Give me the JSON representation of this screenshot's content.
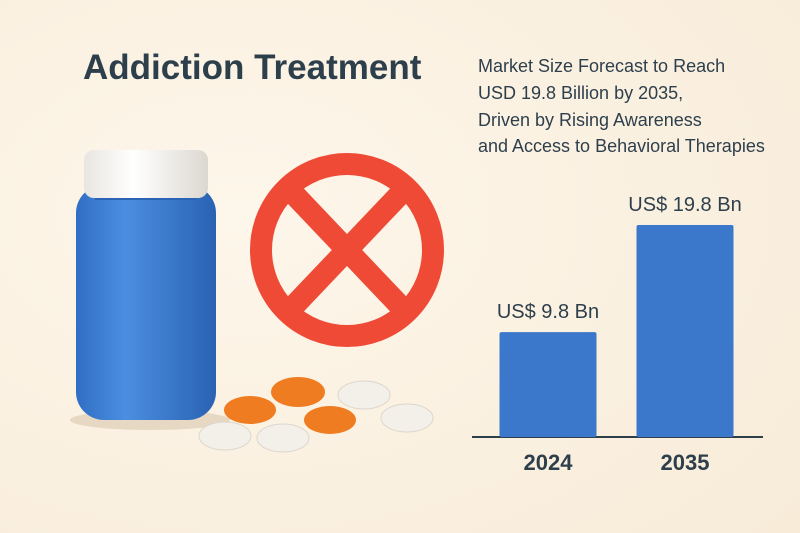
{
  "chart_data": {
    "type": "bar",
    "title": "Addiction Treatment",
    "subtitle": [
      "Market Size Forecast to Reach",
      "USD 19.8 Billion by 2035,",
      "Driven by Rising Awareness",
      "and Access to Behavioral Therapies"
    ],
    "categories": [
      "2024",
      "2035"
    ],
    "values": [
      9.8,
      19.8
    ],
    "value_labels": [
      "US$ 9.8 Bn",
      "US$ 19.8 Bn"
    ],
    "color": "#3b78cc"
  }
}
